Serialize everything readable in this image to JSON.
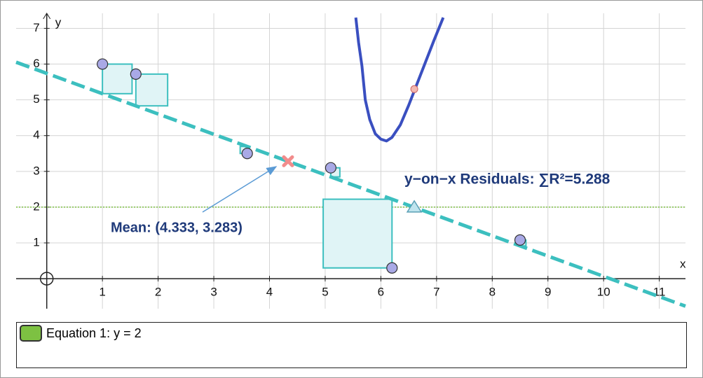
{
  "chart_data": {
    "type": "scatter",
    "x_label": "x",
    "y_label": "y",
    "xlim": [
      -0.55,
      11.47
    ],
    "ylim": [
      -0.84,
      7.42
    ],
    "xticks": [
      1,
      2,
      3,
      4,
      5,
      6,
      7,
      8,
      9,
      10,
      11
    ],
    "yticks": [
      1,
      2,
      3,
      4,
      5,
      6,
      7
    ],
    "grid": true,
    "points": {
      "color": "#a9a9e6",
      "x": [
        1,
        1.6,
        3.6,
        5.1,
        6.2,
        8.5
      ],
      "y": [
        6.0,
        5.72,
        3.5,
        3.1,
        0.3,
        1.08
      ]
    },
    "regression": {
      "color": "#3cbfbf",
      "intercept": 5.74,
      "slope": -0.5675
    },
    "residual_color": "#3cbfbf",
    "hline": {
      "color": "#7dc142",
      "value": 2
    },
    "curve": {
      "color": "#3a4fc0",
      "x": [
        5.55,
        5.6,
        5.66,
        5.72,
        5.8,
        5.9,
        6.0,
        6.1,
        6.2,
        6.35,
        6.5,
        6.65,
        6.8,
        6.95,
        7.12
      ],
      "y": [
        7.3,
        6.6,
        5.95,
        5.0,
        4.45,
        4.05,
        3.9,
        3.85,
        3.95,
        4.3,
        4.85,
        5.45,
        6.05,
        6.65,
        7.3
      ]
    },
    "curve_point": {
      "color": "#f2b8b0",
      "x": 6.6,
      "y": 5.3
    },
    "mean": {
      "color": "#f28c8c",
      "x": 4.333,
      "y": 3.283
    },
    "triangle": {
      "color": "#bfe4ee",
      "x": 6.6,
      "y": 2
    },
    "residuals_label": "y−on−x Residuals:  ∑R²=5.288",
    "mean_label": "Mean:  (4.333, 3.283)"
  },
  "equations": [
    {
      "label": "Equation 1: y = 2",
      "color": "#7dc142"
    }
  ]
}
